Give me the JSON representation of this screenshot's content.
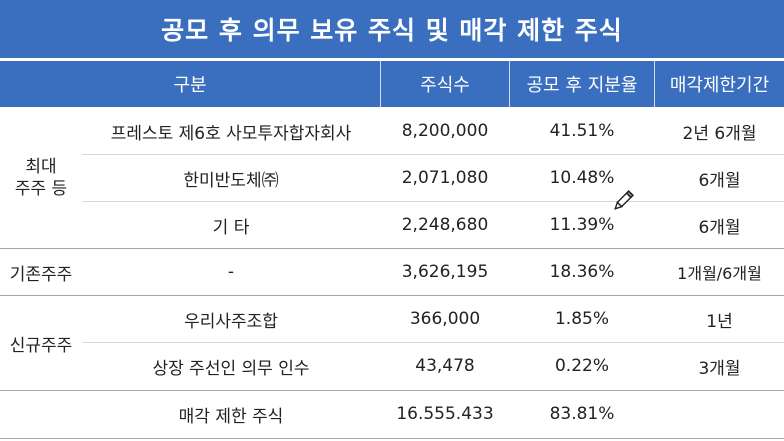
{
  "title": "공모 후 의무 보유 주식 및 매각 제한 주식",
  "headers": {
    "category": "구분",
    "shares": "주식수",
    "stake": "공모 후 지분율",
    "lockup": "매각제한기간"
  },
  "groups": {
    "major": "최대\n주주 등",
    "existing": "기존주주",
    "new": "신규주주"
  },
  "rows": [
    {
      "name": "프레스토 제6호  사모투자합자회사",
      "shares": "8,200,000",
      "stake": "41.51%",
      "lockup": "2년 6개월"
    },
    {
      "name": "한미반도체㈜",
      "shares": "2,071,080",
      "stake": "10.48%",
      "lockup": "6개월"
    },
    {
      "name": "기 타",
      "shares": "2,248,680",
      "stake": "11.39%",
      "lockup": "6개월"
    },
    {
      "name": "-",
      "shares": "3,626,195",
      "stake": "18.36%",
      "lockup": "1개월/6개월"
    },
    {
      "name": "우리사주조합",
      "shares": "366,000",
      "stake": "1.85%",
      "lockup": "1년"
    },
    {
      "name": "상장 주선인 의무 인수",
      "shares": "43,478",
      "stake": "0.22%",
      "lockup": "3개월"
    },
    {
      "name": "매각 제한 주식",
      "shares": "16.555.433",
      "stake": "83.81%",
      "lockup": ""
    }
  ],
  "cursor_icon": "pencil-cursor-icon"
}
